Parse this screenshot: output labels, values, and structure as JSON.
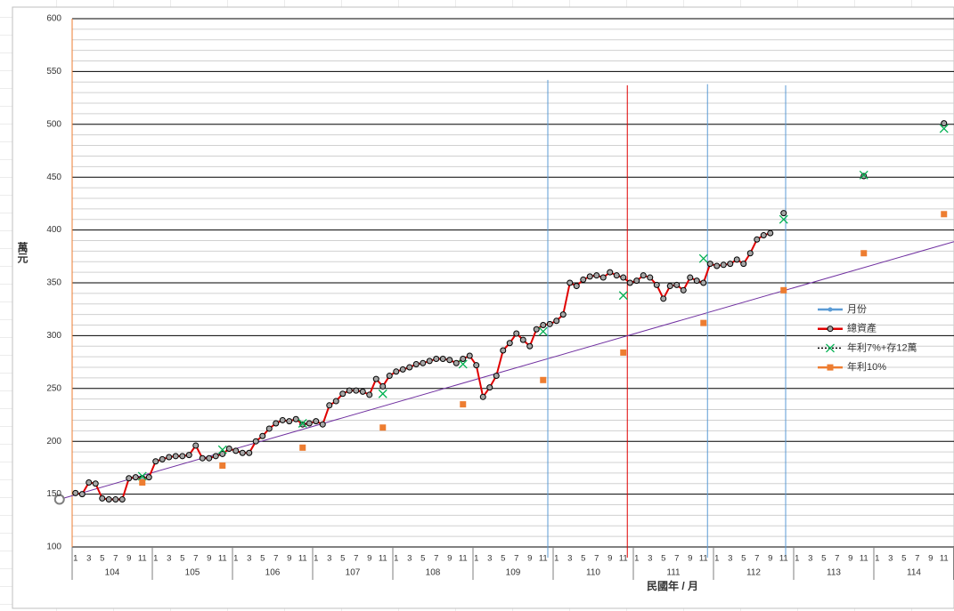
{
  "chart_data": {
    "type": "line",
    "y_axis_label": "萬元",
    "x_axis_label": "民國年 / 月",
    "categories": [
      "1",
      null,
      "3",
      null,
      "5",
      null,
      "7",
      null,
      "9",
      null,
      "11",
      null,
      "1",
      null,
      "3",
      null,
      "5",
      null,
      "7",
      null,
      "9",
      null,
      "11",
      null,
      "1",
      null,
      "3",
      null,
      "5",
      null,
      "7",
      null,
      "9",
      null,
      "11",
      null,
      "1",
      null,
      "3",
      null,
      "5",
      null,
      "7",
      null,
      "9",
      null,
      "11",
      null,
      "1",
      null,
      "3",
      null,
      "5",
      null,
      "7",
      null,
      "9",
      null,
      "11",
      null,
      "1",
      null,
      "3",
      null,
      "5",
      null,
      "7",
      null,
      "9",
      null,
      "11",
      null,
      "1",
      null,
      "3",
      null,
      "5",
      null,
      "7",
      null,
      "9",
      null,
      "11",
      null,
      "1",
      null,
      "3",
      null,
      "5",
      null,
      "7",
      null,
      "9",
      null,
      "11",
      null,
      "1",
      null,
      "3",
      null,
      "5",
      null,
      "7",
      null,
      "9",
      null,
      "11",
      null,
      "1",
      null,
      "3",
      null,
      "5",
      null,
      "7",
      null,
      "9",
      null,
      "11",
      null,
      "1",
      null,
      "3",
      null,
      "5",
      null,
      "7",
      null,
      "9",
      null,
      "11",
      null
    ],
    "groups": [
      "104",
      "105",
      "106",
      "107",
      "108",
      "109",
      "110",
      "111",
      "112",
      "113",
      "114"
    ],
    "ylim": [
      100,
      600
    ],
    "yticks": [
      100,
      150,
      200,
      250,
      300,
      350,
      400,
      450,
      500,
      550,
      600
    ],
    "minor_yticks": [
      110,
      120,
      130,
      140,
      160,
      170,
      180,
      190,
      210,
      220,
      230,
      240,
      260,
      270,
      280,
      290,
      310,
      320,
      330,
      340,
      360,
      370,
      380,
      390,
      410,
      420,
      430,
      440,
      460,
      470,
      480,
      490,
      510,
      520,
      530,
      540,
      560,
      570,
      580,
      590
    ],
    "grid": true,
    "series": [
      {
        "name": "月份",
        "color": "#5b9bd5",
        "style": "vline",
        "x": [
          70.7,
          94.6,
          106.3
        ],
        "values": [
          542,
          538,
          537
        ]
      },
      {
        "name": "總資產",
        "color": "#e00000",
        "style": "line",
        "marker": "circle",
        "values": [
          151,
          150,
          161,
          160,
          146,
          145,
          145,
          145,
          165,
          166,
          165,
          166,
          181,
          183,
          185,
          186,
          186,
          187,
          196,
          184,
          184,
          186,
          188,
          193,
          191,
          189,
          189,
          200,
          205,
          212,
          217,
          220,
          219,
          221,
          216,
          217,
          219,
          216,
          234,
          238,
          245,
          248,
          248,
          247,
          244,
          259,
          252,
          262,
          266,
          268,
          270,
          273,
          274,
          276,
          278,
          278,
          277,
          274,
          278,
          281,
          272,
          242,
          251,
          262,
          286,
          293,
          302,
          296,
          290,
          306,
          310,
          311,
          314,
          320,
          350,
          347,
          353,
          356,
          357,
          355,
          360,
          357,
          355,
          350,
          352,
          357,
          355,
          348,
          335,
          347,
          348,
          343,
          355,
          352,
          350,
          368,
          366,
          367,
          368,
          372,
          368,
          378,
          391,
          395,
          397,
          null,
          416,
          null,
          null,
          null,
          null,
          null,
          null,
          null,
          null,
          null,
          null,
          null,
          451,
          null,
          null,
          null,
          null,
          null,
          null,
          null,
          null,
          null,
          null,
          null,
          501,
          null
        ]
      },
      {
        "name": "年利7%+存12萬",
        "color": "#00b050",
        "style": "scatter",
        "marker": "x",
        "legend_line_color": "#000000",
        "values": [
          null,
          null,
          null,
          null,
          null,
          null,
          null,
          null,
          null,
          null,
          167,
          null,
          null,
          null,
          null,
          null,
          null,
          null,
          null,
          null,
          null,
          null,
          192,
          null,
          null,
          null,
          null,
          null,
          null,
          null,
          null,
          null,
          null,
          null,
          217,
          null,
          null,
          null,
          null,
          null,
          null,
          null,
          null,
          null,
          null,
          null,
          245,
          null,
          null,
          null,
          null,
          null,
          null,
          null,
          null,
          null,
          null,
          null,
          273,
          null,
          null,
          null,
          null,
          null,
          null,
          null,
          null,
          null,
          null,
          null,
          304,
          null,
          null,
          null,
          null,
          null,
          null,
          null,
          null,
          null,
          null,
          null,
          338,
          null,
          null,
          null,
          null,
          null,
          null,
          null,
          null,
          null,
          null,
          null,
          373,
          null,
          null,
          null,
          null,
          null,
          null,
          null,
          null,
          null,
          null,
          null,
          410,
          null,
          null,
          null,
          null,
          null,
          null,
          null,
          null,
          null,
          null,
          null,
          452,
          null,
          null,
          null,
          null,
          null,
          null,
          null,
          null,
          null,
          null,
          null,
          496,
          null
        ]
      },
      {
        "name": "年利10%",
        "color": "#ed7d31",
        "style": "scatter",
        "marker": "square",
        "values": [
          null,
          null,
          null,
          null,
          null,
          null,
          null,
          null,
          null,
          null,
          161,
          null,
          null,
          null,
          null,
          null,
          null,
          null,
          null,
          null,
          null,
          null,
          177,
          null,
          null,
          null,
          null,
          null,
          null,
          null,
          null,
          null,
          null,
          null,
          194,
          null,
          null,
          null,
          null,
          null,
          null,
          null,
          null,
          null,
          null,
          null,
          213,
          null,
          null,
          null,
          null,
          null,
          null,
          null,
          null,
          null,
          null,
          null,
          235,
          null,
          null,
          null,
          null,
          null,
          null,
          null,
          null,
          null,
          null,
          null,
          258,
          null,
          null,
          null,
          null,
          null,
          null,
          null,
          null,
          null,
          null,
          null,
          284,
          null,
          null,
          null,
          null,
          null,
          null,
          null,
          null,
          null,
          null,
          null,
          312,
          null,
          null,
          null,
          null,
          null,
          null,
          null,
          null,
          null,
          null,
          null,
          343,
          null,
          null,
          null,
          null,
          null,
          null,
          null,
          null,
          null,
          null,
          null,
          378,
          null,
          null,
          null,
          null,
          null,
          null,
          null,
          null,
          null,
          null,
          null,
          415,
          null
        ]
      }
    ],
    "trendline": {
      "color": "#7030a0",
      "x": [
        -2.4,
        131.5
      ],
      "values": [
        145,
        389
      ]
    },
    "reference_line": {
      "color": "#e00000",
      "x": 82.6,
      "value": 537
    }
  }
}
